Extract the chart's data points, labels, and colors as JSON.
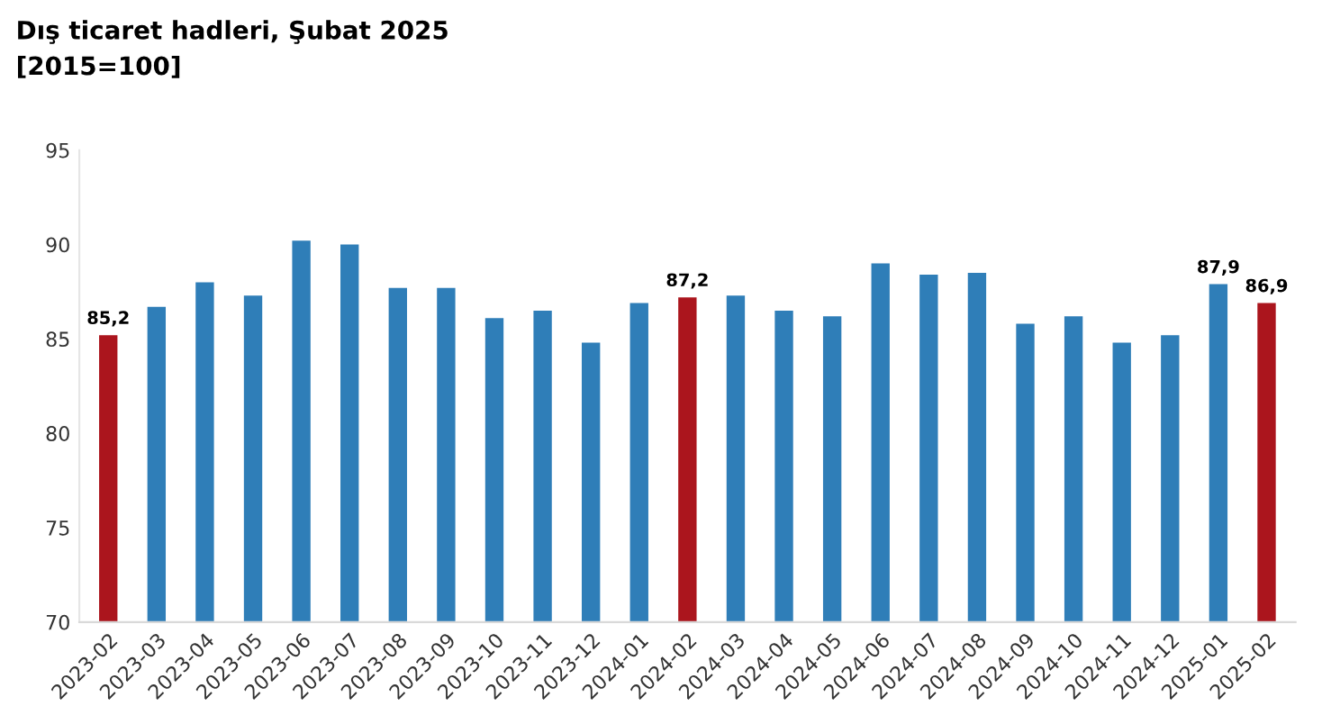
{
  "chart_data": {
    "type": "bar",
    "title": "Dış ticaret hadleri, Şubat 2025",
    "subtitle": "[2015=100]",
    "categories": [
      "2023-02",
      "2023-03",
      "2023-04",
      "2023-05",
      "2023-06",
      "2023-07",
      "2023-08",
      "2023-09",
      "2023-10",
      "2023-11",
      "2023-12",
      "2024-01",
      "2024-02",
      "2024-03",
      "2024-04",
      "2024-05",
      "2024-06",
      "2024-07",
      "2024-08",
      "2024-09",
      "2024-10",
      "2024-11",
      "2024-12",
      "2025-01",
      "2025-02"
    ],
    "values": [
      85.2,
      86.7,
      88.0,
      87.3,
      90.2,
      90.0,
      87.7,
      87.7,
      86.1,
      86.5,
      84.8,
      86.9,
      87.2,
      87.3,
      86.5,
      86.2,
      89.0,
      88.4,
      88.5,
      85.8,
      86.2,
      84.8,
      85.2,
      87.9,
      86.9
    ],
    "colors": [
      "#ab151d",
      "#2f7eb8",
      "#2f7eb8",
      "#2f7eb8",
      "#2f7eb8",
      "#2f7eb8",
      "#2f7eb8",
      "#2f7eb8",
      "#2f7eb8",
      "#2f7eb8",
      "#2f7eb8",
      "#2f7eb8",
      "#ab151d",
      "#2f7eb8",
      "#2f7eb8",
      "#2f7eb8",
      "#2f7eb8",
      "#2f7eb8",
      "#2f7eb8",
      "#2f7eb8",
      "#2f7eb8",
      "#2f7eb8",
      "#2f7eb8",
      "#2f7eb8",
      "#ab151d"
    ],
    "value_labels": [
      "85,2",
      null,
      null,
      null,
      null,
      null,
      null,
      null,
      null,
      null,
      null,
      null,
      "87,2",
      null,
      null,
      null,
      null,
      null,
      null,
      null,
      null,
      null,
      null,
      "87,9",
      "86,9"
    ],
    "ylim": [
      70,
      95
    ],
    "yticks": [
      70,
      75,
      80,
      85,
      90,
      95
    ],
    "grid": false,
    "legend": false
  }
}
